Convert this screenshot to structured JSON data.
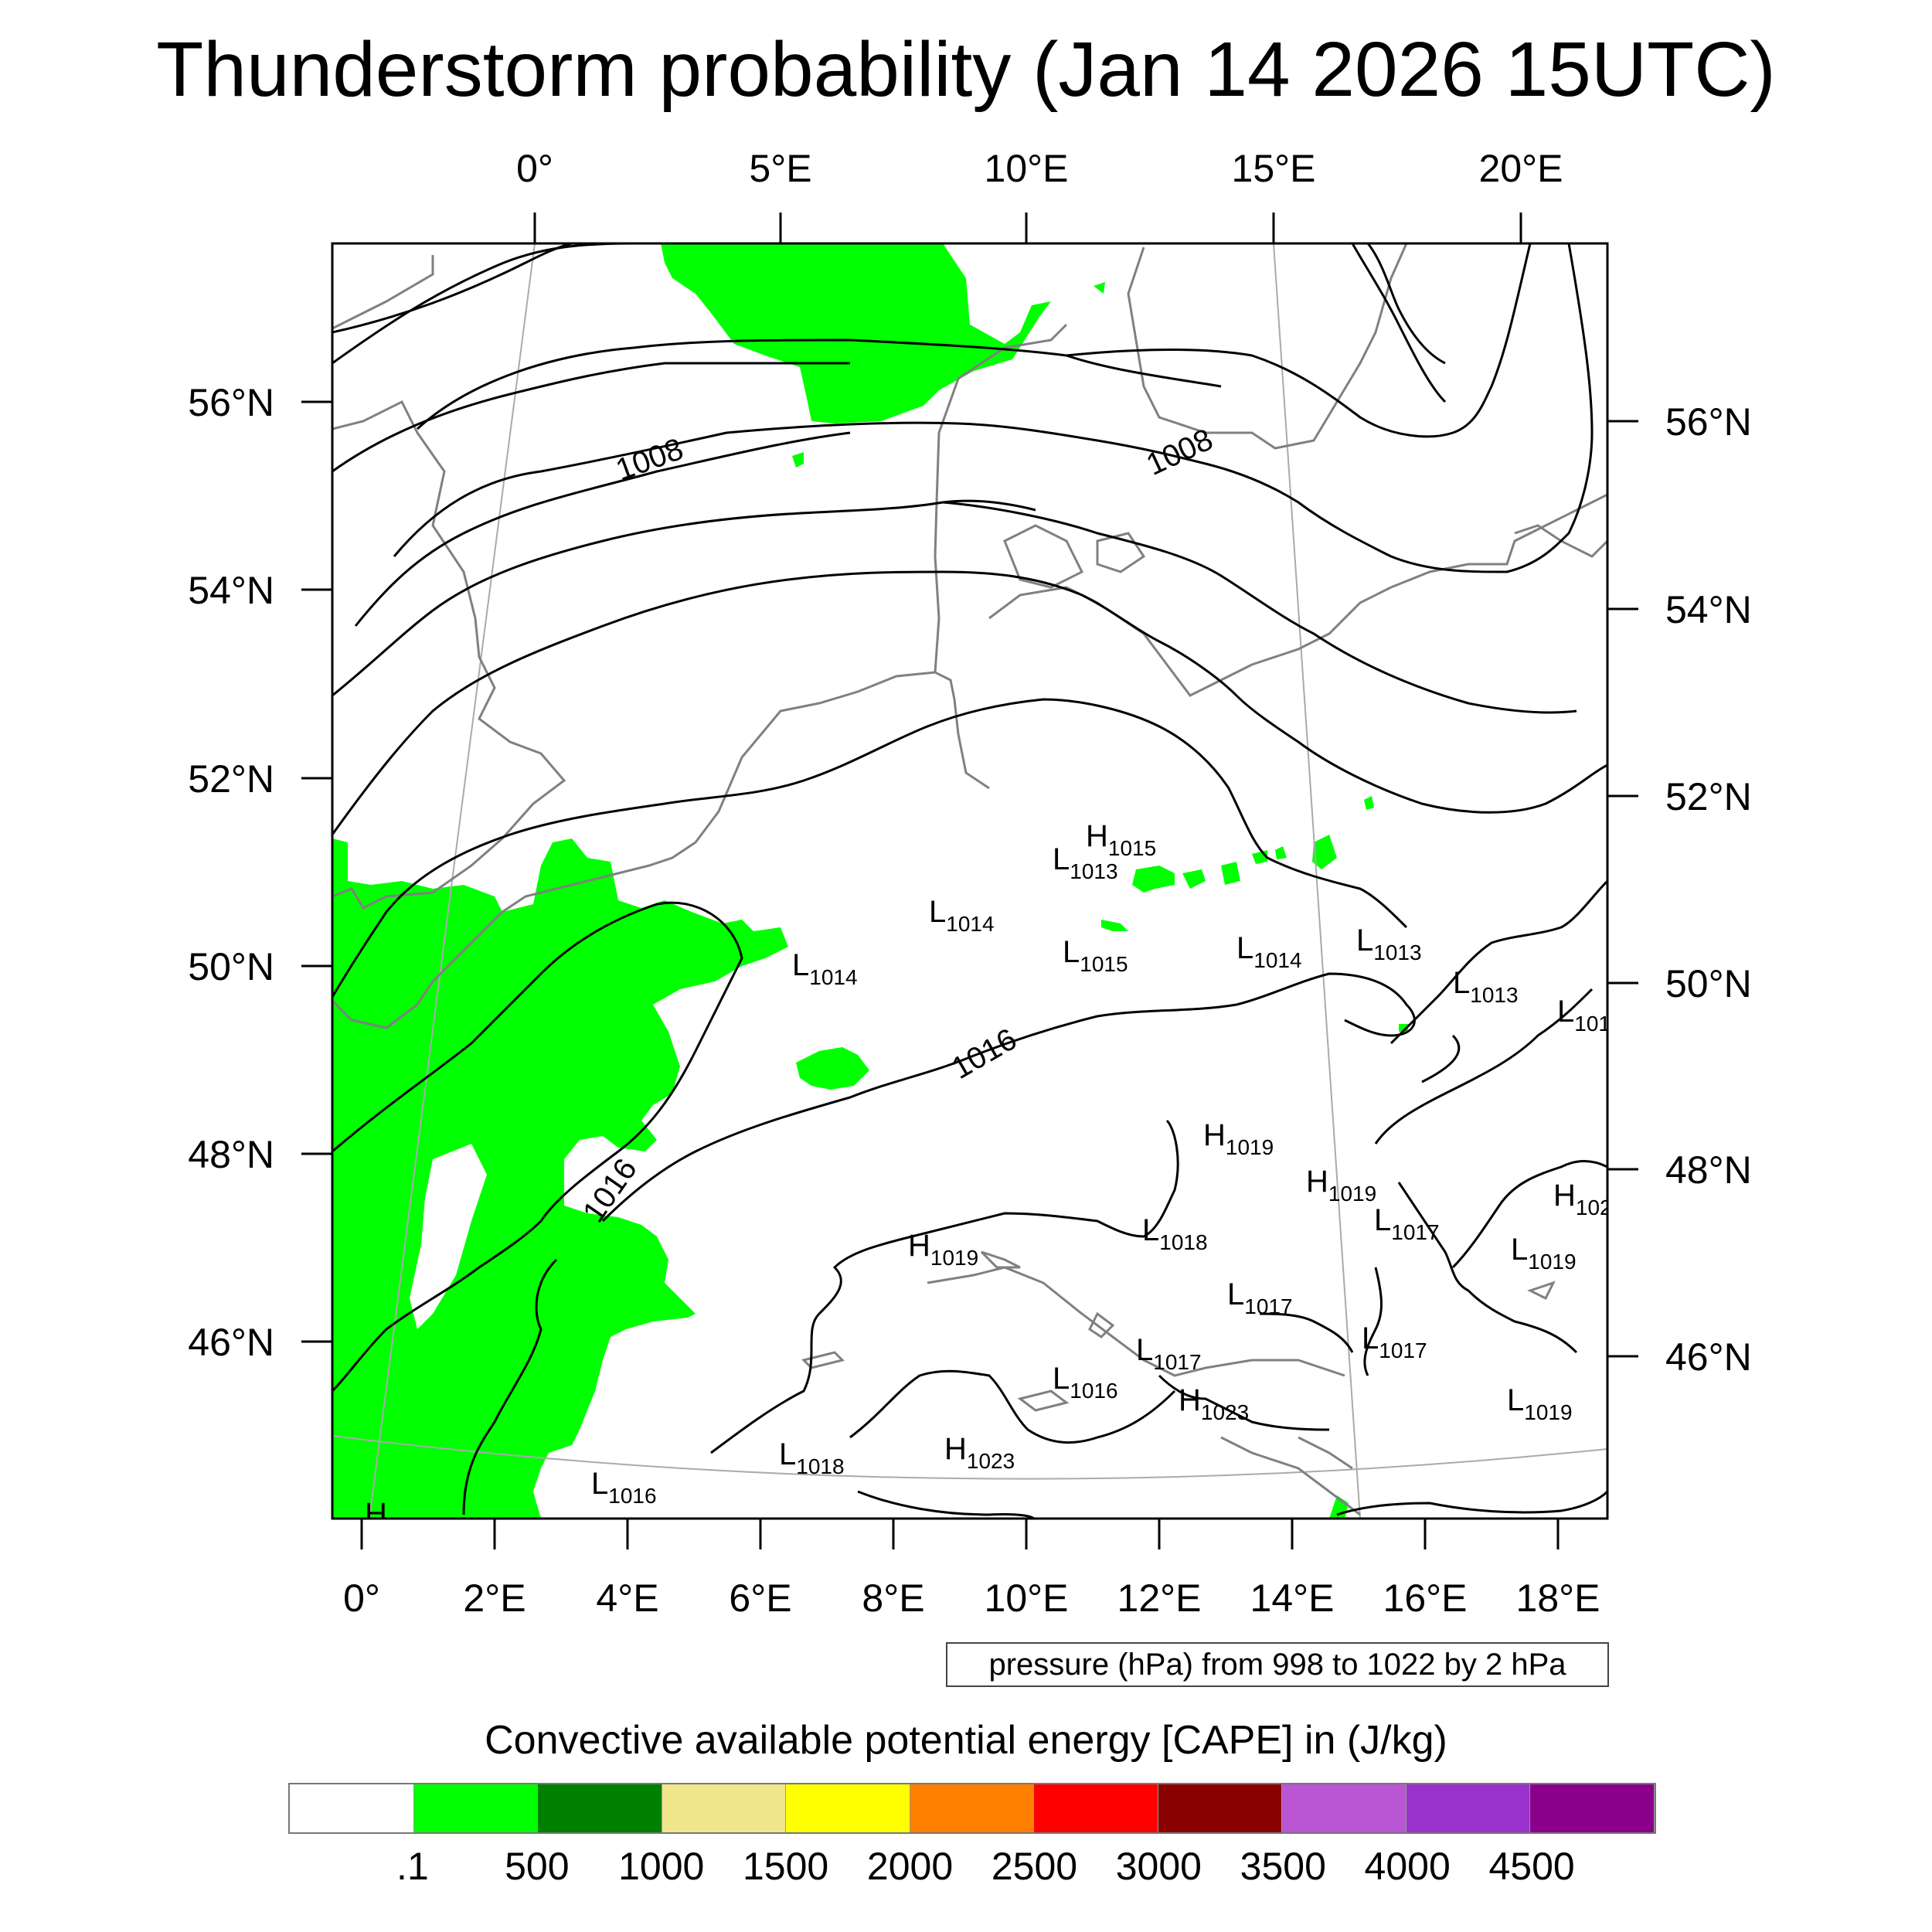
{
  "title": "Thunderstorm probability (Jan 14 2026 15UTC)",
  "map": {
    "top_lon_labels": [
      "0°",
      "5°E",
      "10°E",
      "15°E",
      "20°E"
    ],
    "bottom_lon_labels": [
      "0°",
      "2°E",
      "4°E",
      "6°E",
      "8°E",
      "10°E",
      "12°E",
      "14°E",
      "16°E",
      "18°E"
    ],
    "left_lat_labels": [
      "56°N",
      "54°N",
      "52°N",
      "50°N",
      "48°N",
      "46°N"
    ],
    "right_lat_labels": [
      "56°N",
      "54°N",
      "52°N",
      "50°N",
      "48°N",
      "46°N"
    ],
    "contour_labels": [
      "1008",
      "1008",
      "1016",
      "1016"
    ],
    "pressure_centers": [
      {
        "type": "H",
        "value": "1015"
      },
      {
        "type": "L",
        "value": "1013"
      },
      {
        "type": "L",
        "value": "1014"
      },
      {
        "type": "L",
        "value": "1014"
      },
      {
        "type": "L",
        "value": "1015"
      },
      {
        "type": "L",
        "value": "1014"
      },
      {
        "type": "L",
        "value": "1013"
      },
      {
        "type": "L",
        "value": "1013"
      },
      {
        "type": "L",
        "value": "101"
      },
      {
        "type": "H",
        "value": "1019"
      },
      {
        "type": "H",
        "value": "1019"
      },
      {
        "type": "H",
        "value": "102"
      },
      {
        "type": "L",
        "value": "1017"
      },
      {
        "type": "L",
        "value": "1019"
      },
      {
        "type": "H",
        "value": "1019"
      },
      {
        "type": "L",
        "value": "1018"
      },
      {
        "type": "L",
        "value": "1017"
      },
      {
        "type": "L",
        "value": "1017"
      },
      {
        "type": "L",
        "value": "1017"
      },
      {
        "type": "L",
        "value": "1016"
      },
      {
        "type": "H",
        "value": "1023"
      },
      {
        "type": "L",
        "value": "1019"
      },
      {
        "type": "L",
        "value": "1018"
      },
      {
        "type": "H",
        "value": "1023"
      },
      {
        "type": "L",
        "value": "1016"
      },
      {
        "type": "H",
        "value": ""
      }
    ],
    "colors": {
      "cape_fill": "#00ff00",
      "isobar": "#000000",
      "coastline": "#808080",
      "grid": "#aaaaaa"
    }
  },
  "info_box": "pressure (hPa) from 998 to 1022 by 2 hPa",
  "colorbar": {
    "title": "Convective available potential energy [CAPE] in (J/kg)",
    "colors": [
      "#ffffff",
      "#00ff00",
      "#008000",
      "#f0e68c",
      "#ffff00",
      "#ff8000",
      "#ff0000",
      "#8b0000",
      "#ba55d3",
      "#9932cc",
      "#8b008b"
    ],
    "labels": [
      ".1",
      "500",
      "1000",
      "1500",
      "2000",
      "2500",
      "3000",
      "3500",
      "4000",
      "4500"
    ]
  }
}
